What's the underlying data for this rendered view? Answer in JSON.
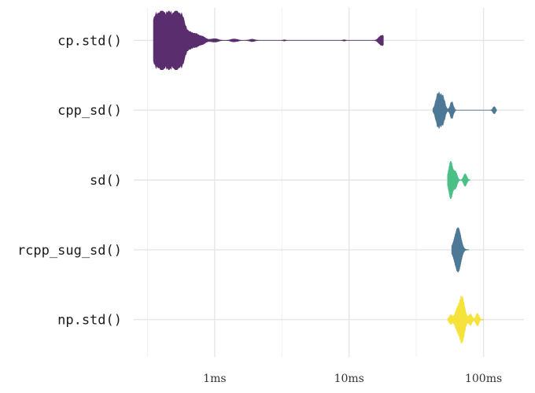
{
  "chart_data": {
    "type": "violin",
    "title": "",
    "xlabel": "",
    "ylabel": "",
    "x_scale": "log10",
    "x_unit": "ms",
    "x_ticks": [
      {
        "value": 1,
        "label": "1ms"
      },
      {
        "value": 10,
        "label": "10ms"
      },
      {
        "value": 100,
        "label": "100ms"
      }
    ],
    "xlim": [
      0.25,
      200
    ],
    "grid": true,
    "categories": [
      "cp.std()",
      "cpp_sd()",
      "sd()",
      "rcpp_sug_sd()",
      "np.std()"
    ],
    "series": [
      {
        "name": "cp.std()",
        "color": "#5a2d6e",
        "range": [
          0.35,
          18
        ],
        "lumps": [
          {
            "at": 0.36,
            "w": 0.035,
            "h": 0.7
          },
          {
            "at": 0.4,
            "w": 0.025,
            "h": 0.55
          },
          {
            "at": 0.45,
            "w": 0.03,
            "h": 0.78
          },
          {
            "at": 0.52,
            "w": 0.03,
            "h": 0.85
          },
          {
            "at": 0.58,
            "w": 0.025,
            "h": 0.5
          },
          {
            "at": 0.68,
            "w": 0.035,
            "h": 0.25
          },
          {
            "at": 0.8,
            "w": 0.03,
            "h": 0.12
          },
          {
            "at": 1.0,
            "w": 0.025,
            "h": 0.06
          },
          {
            "at": 1.4,
            "w": 0.025,
            "h": 0.05
          },
          {
            "at": 1.9,
            "w": 0.02,
            "h": 0.04
          },
          {
            "at": 3.3,
            "w": 0.01,
            "h": 0.02
          },
          {
            "at": 9.2,
            "w": 0.01,
            "h": 0.02
          },
          {
            "at": 17.5,
            "w": 0.02,
            "h": 0.18
          }
        ]
      },
      {
        "name": "cpp_sd()",
        "color": "#4d7896",
        "range": [
          42,
          125
        ],
        "lumps": [
          {
            "at": 46,
            "w": 0.018,
            "h": 0.55
          },
          {
            "at": 50,
            "w": 0.015,
            "h": 0.4
          },
          {
            "at": 58,
            "w": 0.012,
            "h": 0.28
          },
          {
            "at": 120,
            "w": 0.01,
            "h": 0.12
          }
        ]
      },
      {
        "name": "sd()",
        "color": "#4cbf86",
        "range": [
          54,
          80
        ],
        "lumps": [
          {
            "at": 57,
            "w": 0.015,
            "h": 0.6
          },
          {
            "at": 62,
            "w": 0.012,
            "h": 0.25
          },
          {
            "at": 73,
            "w": 0.012,
            "h": 0.2
          }
        ]
      },
      {
        "name": "rcpp_sug_sd()",
        "color": "#4d7896",
        "range": [
          58,
          78
        ],
        "lumps": [
          {
            "at": 63,
            "w": 0.022,
            "h": 0.45
          },
          {
            "at": 66,
            "w": 0.018,
            "h": 0.35
          }
        ]
      },
      {
        "name": "np.std()",
        "color": "#f5e33b",
        "range": [
          54,
          100
        ],
        "lumps": [
          {
            "at": 57,
            "w": 0.012,
            "h": 0.15
          },
          {
            "at": 63,
            "w": 0.015,
            "h": 0.25
          },
          {
            "at": 69,
            "w": 0.02,
            "h": 0.75
          },
          {
            "at": 80,
            "w": 0.012,
            "h": 0.18
          },
          {
            "at": 90,
            "w": 0.012,
            "h": 0.2
          }
        ]
      }
    ]
  }
}
